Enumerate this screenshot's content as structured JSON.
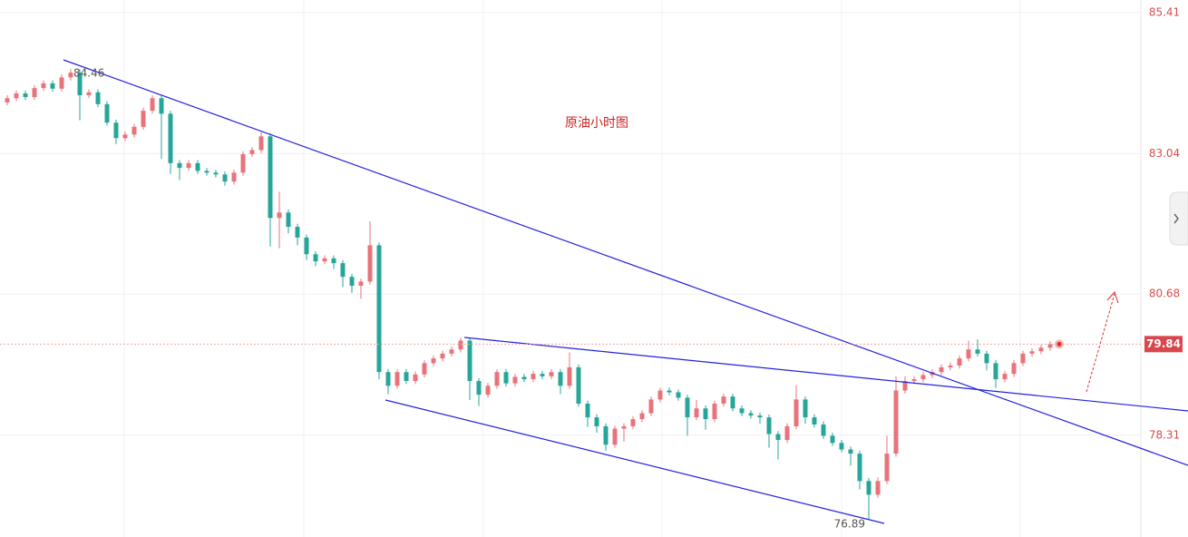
{
  "chart_data": {
    "type": "candlestick",
    "title": "原油小时图",
    "ylim": [
      76.6,
      85.62
    ],
    "yticks": [
      85.41,
      83.04,
      80.68,
      78.31
    ],
    "grid": true,
    "up_color": "#e8737b",
    "down_color": "#26a69a",
    "max_label": 84.46,
    "min_label": 76.89,
    "last_price": 79.84,
    "ohlc": [
      [
        83.9,
        84.02,
        83.85,
        83.97
      ],
      [
        83.97,
        84.1,
        83.92,
        84.05
      ],
      [
        84.05,
        84.1,
        83.94,
        83.99
      ],
      [
        83.99,
        84.19,
        83.94,
        84.14
      ],
      [
        84.14,
        84.27,
        84.09,
        84.22
      ],
      [
        84.22,
        84.27,
        84.08,
        84.13
      ],
      [
        84.13,
        84.37,
        84.08,
        84.32
      ],
      [
        84.32,
        84.46,
        84.27,
        84.4
      ],
      [
        84.4,
        84.45,
        83.6,
        84.02
      ],
      [
        84.02,
        84.12,
        83.97,
        84.07
      ],
      [
        84.07,
        84.12,
        83.82,
        83.87
      ],
      [
        83.87,
        83.92,
        83.51,
        83.56
      ],
      [
        83.56,
        83.61,
        83.2,
        83.3
      ],
      [
        83.3,
        83.41,
        83.25,
        83.36
      ],
      [
        83.36,
        83.54,
        83.31,
        83.49
      ],
      [
        83.49,
        83.81,
        83.44,
        83.76
      ],
      [
        83.76,
        84.02,
        83.71,
        83.97
      ],
      [
        83.97,
        84.02,
        82.95,
        83.71
      ],
      [
        83.71,
        83.76,
        82.7,
        82.88
      ],
      [
        82.88,
        82.93,
        82.6,
        82.8
      ],
      [
        82.8,
        82.93,
        82.75,
        82.88
      ],
      [
        82.88,
        82.93,
        82.7,
        82.75
      ],
      [
        82.75,
        82.8,
        82.67,
        82.72
      ],
      [
        82.72,
        82.77,
        82.64,
        82.69
      ],
      [
        82.69,
        82.74,
        82.5,
        82.57
      ],
      [
        82.57,
        82.77,
        82.52,
        82.72
      ],
      [
        82.72,
        83.08,
        82.67,
        83.03
      ],
      [
        83.03,
        83.15,
        82.98,
        83.1
      ],
      [
        83.1,
        83.4,
        83.05,
        83.33
      ],
      [
        83.33,
        83.38,
        81.48,
        81.96
      ],
      [
        81.96,
        82.4,
        81.45,
        82.05
      ],
      [
        82.05,
        82.1,
        81.7,
        81.81
      ],
      [
        81.81,
        81.86,
        81.5,
        81.63
      ],
      [
        81.63,
        81.68,
        81.25,
        81.35
      ],
      [
        81.35,
        81.4,
        81.15,
        81.23
      ],
      [
        81.23,
        81.33,
        81.18,
        81.28
      ],
      [
        81.28,
        81.33,
        81.1,
        81.2
      ],
      [
        81.2,
        81.25,
        80.8,
        80.97
      ],
      [
        80.97,
        81.02,
        80.7,
        80.82
      ],
      [
        80.82,
        80.94,
        80.6,
        80.89
      ],
      [
        80.89,
        81.9,
        80.84,
        81.5
      ],
      [
        81.5,
        81.55,
        79.25,
        79.37
      ],
      [
        79.37,
        79.42,
        79.0,
        79.14
      ],
      [
        79.14,
        79.42,
        79.09,
        79.37
      ],
      [
        79.37,
        79.42,
        79.17,
        79.22
      ],
      [
        79.22,
        79.38,
        79.17,
        79.33
      ],
      [
        79.33,
        79.57,
        79.28,
        79.52
      ],
      [
        79.52,
        79.65,
        79.47,
        79.6
      ],
      [
        79.6,
        79.73,
        79.55,
        79.68
      ],
      [
        79.68,
        79.8,
        79.63,
        79.75
      ],
      [
        79.75,
        79.95,
        79.7,
        79.9
      ],
      [
        79.9,
        79.95,
        78.9,
        79.22
      ],
      [
        79.22,
        79.27,
        78.8,
        78.99
      ],
      [
        78.99,
        79.19,
        78.94,
        79.14
      ],
      [
        79.14,
        79.42,
        79.09,
        79.37
      ],
      [
        79.37,
        79.42,
        79.13,
        79.18
      ],
      [
        79.18,
        79.34,
        79.13,
        79.29
      ],
      [
        79.29,
        79.34,
        79.2,
        79.25
      ],
      [
        79.25,
        79.39,
        79.2,
        79.34
      ],
      [
        79.34,
        79.39,
        79.25,
        79.3
      ],
      [
        79.3,
        79.42,
        79.25,
        79.37
      ],
      [
        79.37,
        79.42,
        79.0,
        79.14
      ],
      [
        79.14,
        79.7,
        79.09,
        79.45
      ],
      [
        79.45,
        79.5,
        78.79,
        78.84
      ],
      [
        78.84,
        78.89,
        78.45,
        78.61
      ],
      [
        78.61,
        78.66,
        78.35,
        78.46
      ],
      [
        78.46,
        78.51,
        78.05,
        78.15
      ],
      [
        78.15,
        78.47,
        78.1,
        78.42
      ],
      [
        78.42,
        78.51,
        78.2,
        78.46
      ],
      [
        78.46,
        78.63,
        78.41,
        78.58
      ],
      [
        78.58,
        78.73,
        78.53,
        78.68
      ],
      [
        78.68,
        78.96,
        78.63,
        78.91
      ],
      [
        78.91,
        79.11,
        78.86,
        79.06
      ],
      [
        79.06,
        79.11,
        78.98,
        79.03
      ],
      [
        79.03,
        79.08,
        78.89,
        78.94
      ],
      [
        78.94,
        78.99,
        78.3,
        78.61
      ],
      [
        78.61,
        78.9,
        78.56,
        78.76
      ],
      [
        78.76,
        78.81,
        78.4,
        78.58
      ],
      [
        78.58,
        78.89,
        78.53,
        78.84
      ],
      [
        78.84,
        79.01,
        78.79,
        78.96
      ],
      [
        78.96,
        79.01,
        78.71,
        78.76
      ],
      [
        78.76,
        78.81,
        78.63,
        78.68
      ],
      [
        78.68,
        78.73,
        78.59,
        78.64
      ],
      [
        78.64,
        78.69,
        78.5,
        78.61
      ],
      [
        78.61,
        78.66,
        78.1,
        78.33
      ],
      [
        78.33,
        78.38,
        77.9,
        78.23
      ],
      [
        78.23,
        78.51,
        78.18,
        78.46
      ],
      [
        78.46,
        79.15,
        78.41,
        78.91
      ],
      [
        78.91,
        78.96,
        78.5,
        78.61
      ],
      [
        78.61,
        78.66,
        78.44,
        78.49
      ],
      [
        78.49,
        78.54,
        78.25,
        78.3
      ],
      [
        78.3,
        78.35,
        78.13,
        78.18
      ],
      [
        78.18,
        78.23,
        78.02,
        78.07
      ],
      [
        78.07,
        78.12,
        77.8,
        78.0
      ],
      [
        78.0,
        78.05,
        77.4,
        77.54
      ],
      [
        77.54,
        77.59,
        76.89,
        77.31
      ],
      [
        77.31,
        77.6,
        77.26,
        77.54
      ],
      [
        77.54,
        78.3,
        77.49,
        78.0
      ],
      [
        78.0,
        79.3,
        77.95,
        79.06
      ],
      [
        79.06,
        79.3,
        79.01,
        79.22
      ],
      [
        79.22,
        79.3,
        79.17,
        79.25
      ],
      [
        79.25,
        79.37,
        79.2,
        79.32
      ],
      [
        79.32,
        79.42,
        79.27,
        79.37
      ],
      [
        79.37,
        79.5,
        79.32,
        79.45
      ],
      [
        79.45,
        79.53,
        79.4,
        79.48
      ],
      [
        79.48,
        79.65,
        79.43,
        79.6
      ],
      [
        79.6,
        79.9,
        79.55,
        79.75
      ],
      [
        79.75,
        79.92,
        79.63,
        79.68
      ],
      [
        79.68,
        79.73,
        79.4,
        79.52
      ],
      [
        79.52,
        79.57,
        79.1,
        79.25
      ],
      [
        79.25,
        79.39,
        79.2,
        79.34
      ],
      [
        79.34,
        79.57,
        79.29,
        79.52
      ],
      [
        79.52,
        79.73,
        79.47,
        79.68
      ],
      [
        79.68,
        79.77,
        79.63,
        79.72
      ],
      [
        79.72,
        79.83,
        79.67,
        79.78
      ],
      [
        79.78,
        79.89,
        79.73,
        79.84
      ]
    ]
  }
}
